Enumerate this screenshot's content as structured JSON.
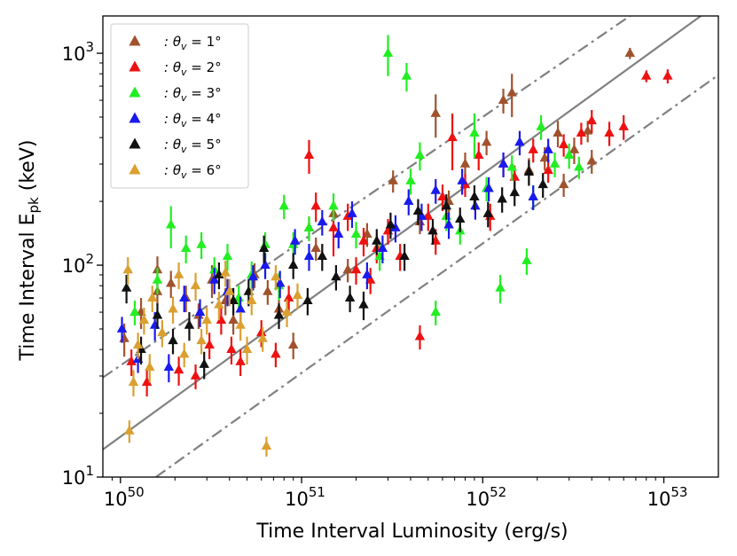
{
  "chart_data": {
    "type": "scatter",
    "xlabel": "Time Interval Luminosity (erg/s)",
    "ylabel_main": "Time Interval E",
    "ylabel_sub": "pk",
    "ylabel_unit": " (keV)",
    "xscale": "log",
    "yscale": "log",
    "xlim": [
      8e+49,
      2e+53
    ],
    "ylim": [
      10,
      1500
    ],
    "x_ticks": [
      {
        "base": "10",
        "exp": "50",
        "value": 1e+50
      },
      {
        "base": "10",
        "exp": "51",
        "value": 1e+51
      },
      {
        "base": "10",
        "exp": "52",
        "value": 1e+52
      },
      {
        "base": "10",
        "exp": "53",
        "value": 1e+53
      }
    ],
    "y_ticks": [
      {
        "base": "10",
        "exp": "1",
        "value": 10
      },
      {
        "base": "10",
        "exp": "2",
        "value": 100
      },
      {
        "base": "10",
        "exp": "3",
        "value": 1000
      }
    ],
    "legend_position": "top-left",
    "reference_lines": [
      {
        "style": "solid",
        "color": "#808080",
        "points": [
          [
            8e+49,
            13.5
          ],
          [
            1.6e+53,
            1500
          ]
        ]
      },
      {
        "style": "dashdot",
        "color": "#808080",
        "points": [
          [
            8e+49,
            29.5
          ],
          [
            6.5e+52,
            1500
          ]
        ]
      },
      {
        "style": "dashdot",
        "color": "#808080",
        "points": [
          [
            1.57e+50,
            10
          ],
          [
            2e+53,
            790
          ]
        ]
      }
    ],
    "series": [
      {
        "name": ": θ_v = 1°",
        "legend_label": ": θv = 1°",
        "color": "#a0522d",
        "points": [
          [
            1.05e+50,
            45,
            8
          ],
          [
            1.3e+50,
            60,
            10
          ],
          [
            1.6e+50,
            75,
            10
          ],
          [
            1.9e+50,
            82,
            12
          ],
          [
            2.3e+50,
            70,
            10
          ],
          [
            2.7e+50,
            58,
            8
          ],
          [
            3.2e+50,
            85,
            15
          ],
          [
            3.8e+50,
            68,
            10
          ],
          [
            4.2e+50,
            55,
            8
          ],
          [
            5.5e+50,
            90,
            12
          ],
          [
            6.5e+50,
            75,
            10
          ],
          [
            7.5e+50,
            62,
            8
          ],
          [
            9e+50,
            42,
            6
          ],
          [
            1.2e+51,
            120,
            15
          ],
          [
            1.5e+51,
            175,
            20
          ],
          [
            1.8e+51,
            95,
            12
          ],
          [
            2.3e+51,
            140,
            18
          ],
          [
            3.2e+51,
            250,
            30
          ],
          [
            4.5e+51,
            160,
            20
          ],
          [
            5.5e+51,
            520,
            120
          ],
          [
            6.5e+51,
            200,
            25
          ],
          [
            8e+51,
            300,
            40
          ],
          [
            1.05e+52,
            380,
            50
          ],
          [
            1.3e+52,
            600,
            80
          ],
          [
            1.45e+52,
            650,
            150
          ],
          [
            1.8e+52,
            280,
            40
          ],
          [
            2.2e+52,
            320,
            40
          ],
          [
            2.6e+52,
            420,
            60
          ],
          [
            3.2e+52,
            350,
            50
          ],
          [
            3.8e+52,
            430,
            50
          ],
          [
            6.5e+52,
            1000,
            60
          ],
          [
            2.8e+52,
            240,
            30
          ],
          [
            1.6e+50,
            95,
            15
          ],
          [
            4e+52,
            310,
            40
          ],
          [
            1.1e+51,
            150,
            20
          ]
        ]
      },
      {
        "name": ": θ_v = 2°",
        "legend_label": ": θv = 2°",
        "color": "#ee1111",
        "points": [
          [
            1.15e+50,
            35,
            5
          ],
          [
            1.4e+50,
            28,
            4
          ],
          [
            2.1e+50,
            32,
            5
          ],
          [
            2.6e+50,
            30,
            4
          ],
          [
            3.1e+50,
            42,
            6
          ],
          [
            3.6e+50,
            55,
            8
          ],
          [
            4.1e+50,
            40,
            6
          ],
          [
            4.6e+50,
            35,
            5
          ],
          [
            6e+50,
            48,
            7
          ],
          [
            7.2e+50,
            38,
            5
          ],
          [
            8.5e+50,
            70,
            10
          ],
          [
            1.1e+51,
            330,
            60
          ],
          [
            1.2e+51,
            190,
            30
          ],
          [
            1.5e+51,
            150,
            40
          ],
          [
            1.8e+51,
            170,
            25
          ],
          [
            2.2e+51,
            130,
            20
          ],
          [
            2.6e+51,
            120,
            18
          ],
          [
            3e+51,
            145,
            20
          ],
          [
            4.5e+51,
            46,
            6
          ],
          [
            5e+51,
            170,
            25
          ],
          [
            6e+51,
            210,
            30
          ],
          [
            6.8e+51,
            400,
            120
          ],
          [
            8e+51,
            240,
            30
          ],
          [
            9.5e+51,
            330,
            50
          ],
          [
            1.1e+52,
            170,
            25
          ],
          [
            1.3e+52,
            300,
            40
          ],
          [
            1.5e+52,
            260,
            35
          ],
          [
            1.9e+52,
            350,
            45
          ],
          [
            2.3e+52,
            280,
            35
          ],
          [
            2.8e+52,
            370,
            45
          ],
          [
            3.5e+52,
            420,
            50
          ],
          [
            4e+52,
            480,
            60
          ],
          [
            5e+52,
            420,
            55
          ],
          [
            6e+52,
            450,
            60
          ],
          [
            8e+52,
            780,
            50
          ],
          [
            1.05e+53,
            780,
            60
          ],
          [
            2.4e+51,
            85,
            12
          ],
          [
            2e+51,
            95,
            14
          ],
          [
            3.5e+51,
            110,
            16
          ],
          [
            5.5e+51,
            130,
            18
          ]
        ]
      },
      {
        "name": ": θ_v = 3°",
        "legend_label": ": θv = 3°",
        "color": "#22ee22",
        "points": [
          [
            1.6e+50,
            85,
            12
          ],
          [
            1.9e+50,
            155,
            35
          ],
          [
            2.3e+50,
            120,
            18
          ],
          [
            2.8e+50,
            125,
            18
          ],
          [
            3.3e+50,
            95,
            14
          ],
          [
            3.9e+50,
            110,
            16
          ],
          [
            4.5e+50,
            70,
            10
          ],
          [
            5.3e+50,
            90,
            14
          ],
          [
            6.3e+50,
            125,
            18
          ],
          [
            7.5e+50,
            80,
            12
          ],
          [
            9e+50,
            125,
            18
          ],
          [
            1.1e+51,
            150,
            20
          ],
          [
            1.5e+51,
            190,
            28
          ],
          [
            2e+51,
            140,
            20
          ],
          [
            2.7e+51,
            110,
            16
          ],
          [
            3e+51,
            1000,
            220
          ],
          [
            3.8e+51,
            780,
            120
          ],
          [
            4.5e+51,
            330,
            50
          ],
          [
            5.5e+51,
            60,
            8
          ],
          [
            6.3e+51,
            170,
            25
          ],
          [
            7.5e+51,
            145,
            20
          ],
          [
            9e+51,
            420,
            100
          ],
          [
            1.05e+52,
            230,
            30
          ],
          [
            1.25e+52,
            78,
            12
          ],
          [
            1.45e+52,
            290,
            40
          ],
          [
            1.75e+52,
            105,
            15
          ],
          [
            2.1e+52,
            450,
            60
          ],
          [
            2.5e+52,
            300,
            40
          ],
          [
            3e+52,
            330,
            45
          ],
          [
            3.4e+52,
            290,
            35
          ],
          [
            1.2e+50,
            60,
            8
          ],
          [
            4e+51,
            250,
            35
          ],
          [
            8e+50,
            190,
            25
          ],
          [
            1.9e+52,
            210,
            28
          ]
        ]
      },
      {
        "name": ": θ_v = 4°",
        "legend_label": ": θv = 4°",
        "color": "#1a1aee",
        "points": [
          [
            1.02e+50,
            50,
            7
          ],
          [
            1.25e+50,
            36,
            5
          ],
          [
            1.55e+50,
            52,
            8
          ],
          [
            1.85e+50,
            33,
            5
          ],
          [
            2.25e+50,
            70,
            10
          ],
          [
            2.75e+50,
            60,
            9
          ],
          [
            3.3e+50,
            85,
            12
          ],
          [
            3.9e+50,
            75,
            11
          ],
          [
            4.6e+50,
            62,
            9
          ],
          [
            5.4e+50,
            88,
            12
          ],
          [
            6.3e+50,
            100,
            14
          ],
          [
            7.6e+50,
            82,
            12
          ],
          [
            9.2e+50,
            130,
            18
          ],
          [
            1.1e+51,
            110,
            16
          ],
          [
            1.3e+51,
            160,
            22
          ],
          [
            1.6e+51,
            140,
            20
          ],
          [
            1.9e+51,
            175,
            25
          ],
          [
            2.3e+51,
            90,
            13
          ],
          [
            2.8e+51,
            120,
            18
          ],
          [
            3.3e+51,
            150,
            22
          ],
          [
            3.9e+51,
            200,
            28
          ],
          [
            4.6e+51,
            170,
            25
          ],
          [
            5.5e+51,
            225,
            30
          ],
          [
            6.5e+51,
            155,
            22
          ],
          [
            7.7e+51,
            250,
            35
          ],
          [
            9.1e+51,
            190,
            26
          ],
          [
            1.08e+52,
            230,
            30
          ],
          [
            1.3e+52,
            300,
            40
          ],
          [
            1.6e+52,
            380,
            50
          ],
          [
            1.9e+52,
            210,
            28
          ],
          [
            2.3e+52,
            350,
            45
          ]
        ]
      },
      {
        "name": ": θ_v = 5°",
        "legend_label": ": θv = 5°",
        "color": "#111111",
        "points": [
          [
            1.08e+50,
            78,
            12
          ],
          [
            1.3e+50,
            40,
            6
          ],
          [
            1.6e+50,
            58,
            8
          ],
          [
            1.95e+50,
            44,
            6
          ],
          [
            2.4e+50,
            52,
            8
          ],
          [
            2.9e+50,
            34,
            5
          ],
          [
            3.5e+50,
            90,
            13
          ],
          [
            4.2e+50,
            68,
            10
          ],
          [
            5.1e+50,
            75,
            11
          ],
          [
            6.2e+50,
            120,
            18
          ],
          [
            7.5e+50,
            58,
            8
          ],
          [
            9e+50,
            100,
            14
          ],
          [
            1.08e+51,
            68,
            10
          ],
          [
            1.3e+51,
            110,
            16
          ],
          [
            1.55e+51,
            88,
            12
          ],
          [
            1.85e+51,
            70,
            10
          ],
          [
            2.2e+51,
            65,
            10
          ],
          [
            2.6e+51,
            130,
            18
          ],
          [
            3.1e+51,
            155,
            22
          ],
          [
            3.7e+51,
            110,
            16
          ],
          [
            4.4e+51,
            180,
            25
          ],
          [
            5.3e+51,
            145,
            20
          ],
          [
            6.3e+51,
            190,
            26
          ],
          [
            7.5e+51,
            165,
            22
          ],
          [
            9e+51,
            210,
            28
          ],
          [
            1.07e+52,
            175,
            24
          ],
          [
            1.28e+52,
            205,
            28
          ],
          [
            1.5e+52,
            220,
            30
          ],
          [
            1.8e+52,
            275,
            38
          ],
          [
            2.15e+52,
            240,
            32
          ]
        ]
      },
      {
        "name": ": θ_v = 6°",
        "legend_label": ": θv = 6°",
        "color": "#daa030",
        "points": [
          [
            1.12e+50,
            16.5,
            2
          ],
          [
            1.18e+50,
            28,
            4
          ],
          [
            1.35e+50,
            55,
            8
          ],
          [
            1.5e+50,
            70,
            10
          ],
          [
            1.7e+50,
            48,
            7
          ],
          [
            1.95e+50,
            62,
            9
          ],
          [
            2.25e+50,
            38,
            5
          ],
          [
            2.6e+50,
            80,
            12
          ],
          [
            3e+50,
            55,
            8
          ],
          [
            3.5e+50,
            65,
            10
          ],
          [
            4e+50,
            75,
            11
          ],
          [
            4.6e+50,
            52,
            8
          ],
          [
            5.3e+50,
            68,
            10
          ],
          [
            6.1e+50,
            45,
            6
          ],
          [
            6.4e+50,
            14,
            1.5
          ],
          [
            7.2e+50,
            88,
            12
          ],
          [
            8.3e+50,
            60,
            9
          ],
          [
            9.5e+50,
            72,
            10
          ],
          [
            1.1e+50,
            95,
            14
          ],
          [
            1.25e+50,
            42,
            6
          ],
          [
            2.1e+50,
            90,
            13
          ],
          [
            2.8e+50,
            44,
            6
          ],
          [
            3.8e+50,
            92,
            13
          ],
          [
            5e+50,
            40,
            6
          ],
          [
            1.45e+50,
            33,
            5
          ]
        ]
      }
    ]
  }
}
